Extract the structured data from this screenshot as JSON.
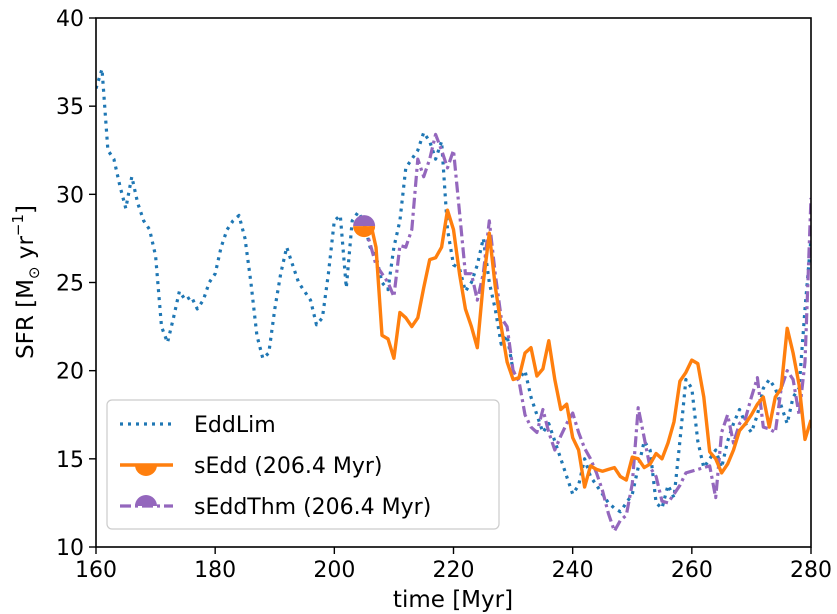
{
  "chart_data": {
    "type": "line",
    "xlabel": "time [Myr]",
    "ylabel": "SFR [M",
    "ylabel_sub": "⊙",
    "ylabel_unit": " yr",
    "ylabel_sup": "−1",
    "ylabel_close": "]",
    "xlim": [
      160,
      280
    ],
    "ylim": [
      10,
      40
    ],
    "xticks": [
      160,
      180,
      200,
      220,
      240,
      260,
      280
    ],
    "yticks": [
      10,
      15,
      20,
      25,
      30,
      35,
      40
    ],
    "grid": false,
    "legend_position": "lower-left",
    "series": [
      {
        "name": "EddLim",
        "color": "#1f77b4",
        "style": "dotted",
        "marker": "none",
        "x": [
          160,
          161,
          162,
          163,
          164,
          165,
          166,
          167,
          168,
          169,
          170,
          171,
          172,
          173,
          174,
          175,
          176,
          177,
          178,
          179,
          180,
          181,
          182,
          183,
          184,
          185,
          186,
          187,
          188,
          189,
          190,
          191,
          192,
          193,
          194,
          195,
          196,
          197,
          198,
          199,
          200,
          201,
          202,
          203,
          204,
          205,
          206,
          207,
          208,
          209,
          210,
          211,
          212,
          213,
          214,
          215,
          216,
          217,
          218,
          219,
          220,
          221,
          222,
          223,
          224,
          225,
          226,
          227,
          228,
          229,
          230,
          231,
          232,
          233,
          234,
          235,
          236,
          237,
          238,
          239,
          240,
          241,
          242,
          243,
          244,
          245,
          246,
          247,
          248,
          249,
          250,
          251,
          252,
          253,
          254,
          255,
          256,
          257,
          258,
          259,
          260,
          261,
          262,
          263,
          264,
          265,
          266,
          267,
          268,
          269,
          270,
          271,
          272,
          273,
          274,
          275,
          276,
          277,
          278,
          279,
          280
        ],
        "y": [
          36.0,
          37.1,
          32.5,
          32.0,
          30.5,
          29.2,
          31.0,
          29.5,
          28.5,
          28.0,
          26.5,
          22.5,
          21.6,
          23.0,
          24.5,
          24.0,
          24.2,
          23.5,
          24.0,
          25.0,
          25.5,
          27.0,
          28.0,
          28.5,
          28.8,
          27.5,
          25.0,
          22.0,
          20.7,
          21.0,
          23.5,
          25.5,
          27.0,
          26.0,
          25.0,
          24.5,
          24.0,
          22.6,
          23.0,
          25.5,
          28.5,
          28.8,
          24.7,
          28.5,
          29.0,
          28.4,
          27.0,
          26.5,
          25.0,
          24.6,
          27.0,
          28.5,
          31.5,
          32.0,
          32.5,
          33.5,
          33.0,
          32.0,
          33.0,
          28.0,
          26.0,
          25.8,
          24.5,
          25.0,
          26.0,
          27.5,
          25.0,
          23.5,
          21.5,
          22.0,
          20.0,
          19.5,
          20.0,
          18.5,
          17.5,
          16.5,
          17.0,
          16.0,
          15.0,
          14.0,
          13.0,
          13.5,
          15.0,
          14.0,
          13.5,
          13.0,
          12.5,
          12.2,
          12.0,
          12.5,
          13.0,
          14.5,
          16.0,
          15.5,
          12.5,
          12.2,
          13.5,
          12.8,
          16.0,
          19.5,
          19.0,
          16.0,
          14.5,
          15.0,
          15.5,
          14.5,
          16.0,
          17.0,
          17.8,
          17.0,
          16.5,
          17.5,
          19.0,
          19.5,
          19.0,
          18.0,
          17.0,
          18.5,
          19.0,
          23.5,
          27.5
        ]
      },
      {
        "name": "sEdd (206.4 Myr)",
        "color": "#ff7f0e",
        "style": "solid",
        "marker": "semicircle-bottom",
        "x": [
          205,
          206,
          207,
          208,
          209,
          210,
          211,
          212,
          213,
          214,
          215,
          216,
          217,
          218,
          219,
          220,
          221,
          222,
          223,
          224,
          225,
          226,
          227,
          228,
          229,
          230,
          231,
          232,
          233,
          234,
          235,
          236,
          237,
          238,
          239,
          240,
          241,
          242,
          243,
          244,
          245,
          246,
          247,
          248,
          249,
          250,
          251,
          252,
          253,
          254,
          255,
          256,
          257,
          258,
          259,
          260,
          261,
          262,
          263,
          264,
          265,
          266,
          267,
          268,
          269,
          270,
          271,
          272,
          273,
          274,
          275,
          276,
          277,
          278,
          279,
          280
        ],
        "y": [
          28.2,
          28.5,
          27.0,
          22.0,
          21.8,
          20.7,
          23.3,
          23.0,
          22.5,
          23.0,
          24.7,
          26.3,
          26.4,
          27.0,
          29.1,
          28.0,
          25.5,
          23.5,
          22.5,
          21.3,
          25.0,
          27.8,
          24.8,
          22.5,
          20.5,
          19.5,
          19.6,
          21.0,
          21.3,
          19.7,
          20.1,
          21.7,
          19.5,
          17.8,
          18.1,
          16.2,
          15.5,
          13.4,
          14.6,
          14.4,
          14.3,
          14.4,
          14.5,
          14.0,
          13.8,
          15.1,
          15.0,
          14.5,
          14.7,
          15.3,
          15.0,
          15.9,
          17.1,
          19.4,
          19.9,
          20.6,
          20.4,
          18.5,
          15.4,
          15.0,
          14.2,
          14.7,
          15.5,
          16.6,
          17.0,
          17.5,
          18.1,
          18.5,
          16.8,
          18.5,
          19.0,
          22.4,
          21.0,
          19.2,
          16.1,
          17.2
        ]
      },
      {
        "name": "sEddThm (206.4 Myr)",
        "color": "#9467bd",
        "style": "dashdot",
        "marker": "semicircle-top",
        "x": [
          205,
          206,
          207,
          208,
          209,
          210,
          211,
          212,
          213,
          214,
          215,
          216,
          217,
          218,
          219,
          220,
          221,
          222,
          223,
          224,
          225,
          226,
          227,
          228,
          229,
          230,
          231,
          232,
          233,
          234,
          235,
          236,
          237,
          238,
          239,
          240,
          241,
          242,
          243,
          244,
          245,
          246,
          247,
          248,
          249,
          250,
          251,
          252,
          253,
          254,
          255,
          256,
          257,
          258,
          259,
          260,
          261,
          262,
          263,
          264,
          265,
          266,
          267,
          268,
          269,
          270,
          271,
          272,
          273,
          274,
          275,
          276,
          277,
          278,
          279,
          280
        ],
        "y": [
          28.3,
          27.2,
          26.0,
          25.5,
          25.0,
          24.2,
          27.1,
          27.0,
          28.0,
          32.0,
          31.0,
          32.0,
          33.4,
          32.5,
          31.5,
          32.5,
          29.0,
          25.5,
          25.5,
          24.0,
          25.5,
          28.5,
          25.5,
          23.0,
          22.5,
          20.0,
          19.4,
          17.5,
          16.8,
          16.5,
          17.8,
          16.5,
          15.5,
          16.3,
          17.0,
          17.6,
          16.5,
          15.6,
          15.0,
          14.2,
          13.2,
          11.9,
          10.9,
          11.5,
          11.8,
          13.6,
          17.9,
          16.2,
          14.5,
          14.0,
          12.6,
          12.5,
          13.0,
          13.5,
          14.2,
          14.3,
          14.4,
          14.5,
          14.6,
          12.8,
          16.5,
          17.5,
          15.9,
          17.0,
          17.3,
          18.5,
          19.6,
          16.8,
          16.7,
          16.5,
          19.0,
          20.0,
          19.5,
          17.5,
          20.5,
          29.8
        ]
      }
    ]
  }
}
